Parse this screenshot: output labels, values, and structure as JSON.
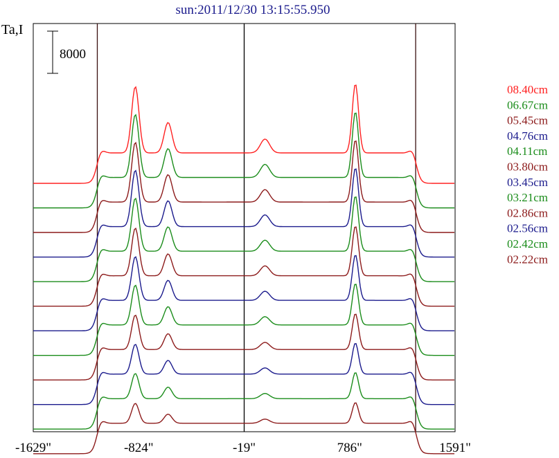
{
  "chart_data": {
    "type": "line",
    "title": "sun:2011/12/30 13:15:55.950",
    "ylabel": "Ta,I",
    "scale_bar_label": "8000",
    "xlim": [
      -1629,
      1591
    ],
    "x_ticks": [
      {
        "value": -1629,
        "label": "-1629\""
      },
      {
        "value": -824,
        "label": "-824\""
      },
      {
        "value": -19,
        "label": "-19\""
      },
      {
        "value": 786,
        "label": "786\""
      },
      {
        "value": 1591,
        "label": "1591\""
      }
    ],
    "vertical_lines": [
      -1140,
      -19,
      1290
    ],
    "series": [
      {
        "name": "08.40cm",
        "color": "#ff2020",
        "offset": 0.0,
        "peak": 1.0
      },
      {
        "name": "06.67cm",
        "color": "#1a8c1a",
        "offset": 1.0,
        "peak": 0.95
      },
      {
        "name": "05.45cm",
        "color": "#8c1a1a",
        "offset": 2.0,
        "peak": 0.9
      },
      {
        "name": "04.76cm",
        "color": "#1a1a8c",
        "offset": 3.0,
        "peak": 0.85
      },
      {
        "name": "04.11cm",
        "color": "#1a8c1a",
        "offset": 4.0,
        "peak": 0.8
      },
      {
        "name": "03.80cm",
        "color": "#8c1a1a",
        "offset": 5.0,
        "peak": 0.72
      },
      {
        "name": "03.45cm",
        "color": "#1a1a8c",
        "offset": 6.0,
        "peak": 0.66
      },
      {
        "name": "03.21cm",
        "color": "#1a8c1a",
        "offset": 7.0,
        "peak": 0.6
      },
      {
        "name": "02.86cm",
        "color": "#8c1a1a",
        "offset": 8.0,
        "peak": 0.52
      },
      {
        "name": "02.56cm",
        "color": "#1a1a8c",
        "offset": 9.0,
        "peak": 0.45
      },
      {
        "name": "02.42cm",
        "color": "#1a8c1a",
        "offset": 10.0,
        "peak": 0.38
      },
      {
        "name": "02.22cm",
        "color": "#8c1a1a",
        "offset": 11.0,
        "peak": 0.3
      }
    ]
  }
}
